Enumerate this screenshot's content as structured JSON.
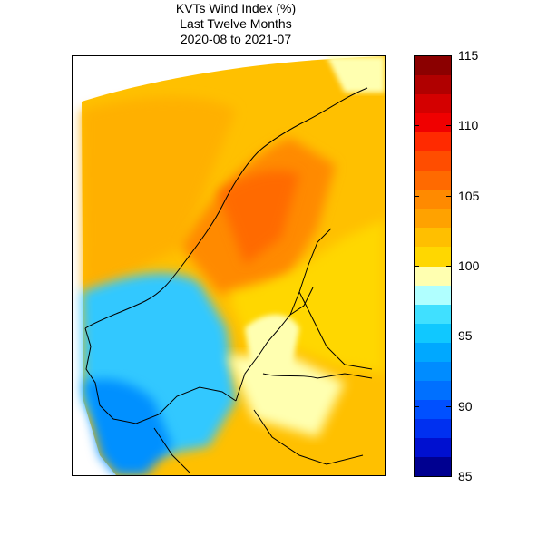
{
  "title_lines": [
    "KVTs Wind Index (%)",
    "Last Twelve Months",
    "2020-08 to 2021-07"
  ],
  "colorbar": {
    "min": 85,
    "max": 115,
    "tick_values": [
      115,
      110,
      105,
      100,
      95,
      90,
      85
    ],
    "tick_labels": [
      "115",
      "110",
      "105",
      "100",
      "95",
      "90",
      "85"
    ],
    "colors": [
      "#8b0000",
      "#b00000",
      "#d40000",
      "#f00000",
      "#ff2a00",
      "#ff4d00",
      "#ff6a00",
      "#ff8a00",
      "#ffa200",
      "#ffbf00",
      "#ffd700",
      "#ffffb0",
      "#b0ffff",
      "#40e0ff",
      "#10c8ff",
      "#00a8ff",
      "#008cff",
      "#0070ff",
      "#0050ff",
      "#0030f0",
      "#0010d0",
      "#000090"
    ]
  },
  "map": {
    "region": "Scandinavia",
    "colors": {
      "sea": "#ffc000",
      "north_sea": "#ffb000",
      "norway_south": "#30c8ff",
      "norway_south_deep": "#0090ff",
      "mountains": "#ff8a00",
      "mountains_high": "#ff6a00",
      "sweden": "#ffd700",
      "baltic": "#ffffb0",
      "finland": "#ffd000",
      "coast": "#000000"
    }
  }
}
